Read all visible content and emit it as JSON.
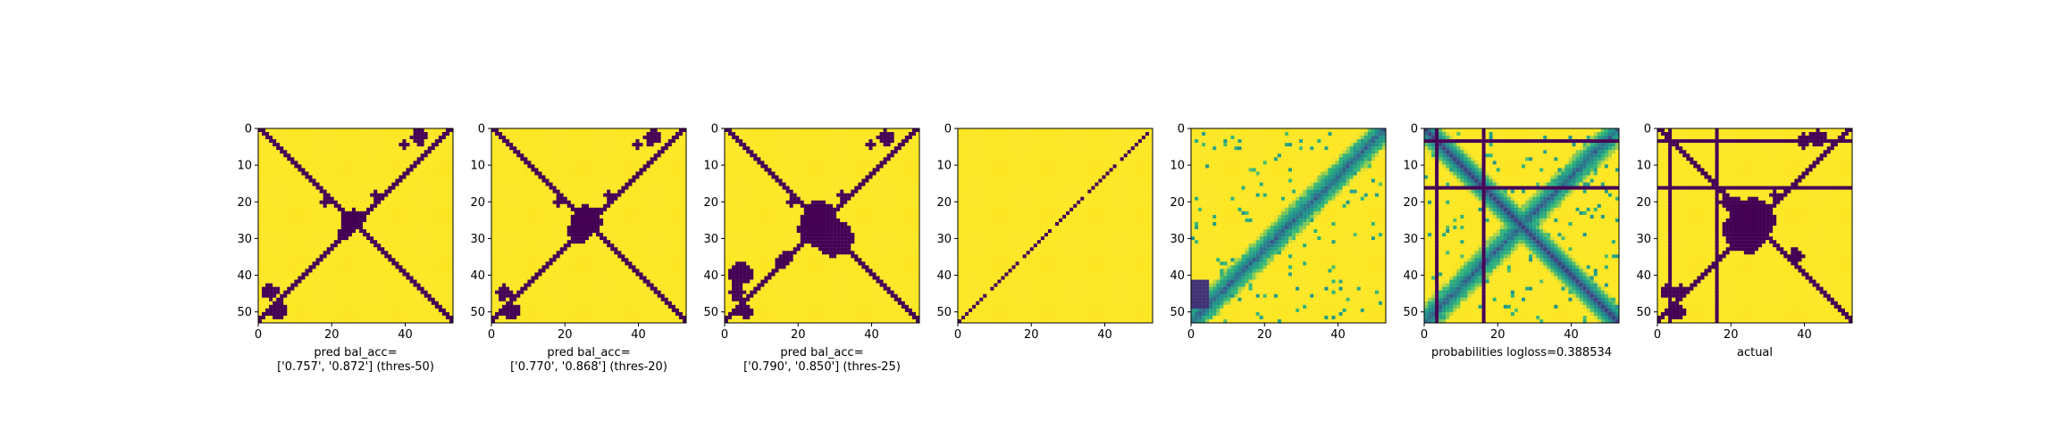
{
  "colors": {
    "low": "#440154",
    "mid_dark": "#31688e",
    "mid": "#21918c",
    "mid_light": "#35b779",
    "high": "#fde725",
    "axis": "#000000"
  },
  "chart_data": [
    {
      "type": "heatmap",
      "colormap": "viridis",
      "grid": false,
      "matrix_size": 54,
      "xlim": [
        0,
        53
      ],
      "ylim": [
        53,
        0
      ],
      "xticks": [
        0,
        20,
        40
      ],
      "yticks": [
        0,
        10,
        20,
        30,
        40,
        50
      ],
      "title": "",
      "xlabel": "pred bal_acc=\n['0.757', '0.872'] (thres-50)",
      "ylabel": "",
      "pattern": "binary prediction: anti-diagonal band and main diagonal band (value 0) on background (value 1), with scattered clusters"
    },
    {
      "type": "heatmap",
      "colormap": "viridis",
      "grid": false,
      "matrix_size": 54,
      "xlim": [
        0,
        53
      ],
      "ylim": [
        53,
        0
      ],
      "xticks": [
        0,
        20,
        40
      ],
      "yticks": [
        0,
        10,
        20,
        30,
        40,
        50
      ],
      "title": "",
      "xlabel": "pred bal_acc=\n['0.770', '0.868'] (thres-20)",
      "ylabel": "",
      "pattern": "binary prediction: crossing diagonals with larger central cluster"
    },
    {
      "type": "heatmap",
      "colormap": "viridis",
      "grid": false,
      "matrix_size": 54,
      "xlim": [
        0,
        53
      ],
      "ylim": [
        53,
        0
      ],
      "xticks": [
        0,
        20,
        40
      ],
      "yticks": [
        0,
        10,
        20,
        30,
        40,
        50
      ],
      "title": "",
      "xlabel": "pred bal_acc=\n['0.790', '0.850'] (thres-25)",
      "ylabel": "",
      "pattern": "binary prediction: crossing diagonals with wide central blob"
    },
    {
      "type": "heatmap",
      "colormap": "viridis",
      "grid": false,
      "matrix_size": 54,
      "xlim": [
        0,
        53
      ],
      "ylim": [
        53,
        0
      ],
      "xticks": [
        0,
        20,
        40
      ],
      "yticks": [
        0,
        10,
        20,
        30,
        40,
        50
      ],
      "title": "",
      "xlabel": "",
      "ylabel": "",
      "pattern": "thin dashed anti-diagonal (value 0) on background (value 1)"
    },
    {
      "type": "heatmap",
      "colormap": "viridis",
      "grid": false,
      "matrix_size": 54,
      "xlim": [
        0,
        53
      ],
      "ylim": [
        53,
        0
      ],
      "xticks": [
        0,
        20,
        40
      ],
      "yticks": [
        0,
        10,
        20,
        30,
        40,
        50
      ],
      "title": "",
      "xlabel": "",
      "ylabel": "",
      "pattern": "continuous probabilities: diffuse anti-diagonal and diagonal structure"
    },
    {
      "type": "heatmap",
      "colormap": "viridis",
      "grid": false,
      "matrix_size": 54,
      "xlim": [
        0,
        53
      ],
      "ylim": [
        53,
        0
      ],
      "xticks": [
        0,
        20,
        40
      ],
      "yticks": [
        0,
        10,
        20,
        30,
        40,
        50
      ],
      "title": "",
      "xlabel": "probabilities logloss=0.388534",
      "ylabel": "",
      "pattern": "continuous probabilities with masked rows/columns at 3 and 16"
    },
    {
      "type": "heatmap",
      "colormap": "viridis",
      "grid": false,
      "matrix_size": 54,
      "xlim": [
        0,
        53
      ],
      "ylim": [
        53,
        0
      ],
      "xticks": [
        0,
        20,
        40
      ],
      "yticks": [
        0,
        10,
        20,
        30,
        40,
        50
      ],
      "title": "",
      "xlabel": "actual",
      "ylabel": "",
      "pattern": "ground-truth binary matrix: crossing diagonals with masked rows/columns at 3 and 16"
    }
  ]
}
